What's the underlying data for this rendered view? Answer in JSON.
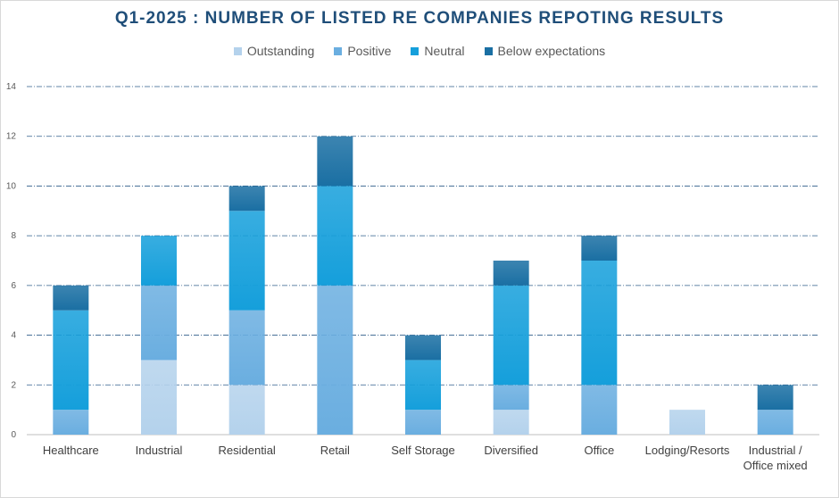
{
  "chart_data": {
    "type": "bar",
    "stacked": true,
    "title": "Q1-2025 : NUMBER OF LISTED RE COMPANIES REPOTING RESULTS",
    "categories": [
      [
        "Healthcare"
      ],
      [
        "Industrial"
      ],
      [
        "Residential"
      ],
      [
        "Retail"
      ],
      [
        "Self Storage"
      ],
      [
        "Diversified"
      ],
      [
        "Office"
      ],
      [
        "Lodging/Resorts"
      ],
      [
        "Industrial /",
        "Office mixed"
      ]
    ],
    "series": [
      {
        "name": "Outstanding",
        "color": "#b4d2ec",
        "values": [
          0,
          3,
          2,
          0,
          0,
          1,
          0,
          1,
          0
        ]
      },
      {
        "name": "Positive",
        "color": "#6aaee0",
        "values": [
          1,
          3,
          3,
          6,
          1,
          1,
          2,
          0,
          1
        ]
      },
      {
        "name": "Neutral",
        "color": "#159fdb",
        "values": [
          4,
          2,
          4,
          4,
          2,
          4,
          5,
          0,
          0
        ]
      },
      {
        "name": "Below expectations",
        "color": "#1a6fa3",
        "values": [
          1,
          0,
          1,
          2,
          1,
          1,
          1,
          0,
          1
        ]
      }
    ],
    "ylim": [
      0,
      14
    ],
    "yticks": [
      0,
      2,
      4,
      6,
      8,
      10,
      12,
      14
    ],
    "grid": true,
    "legend_position": "top"
  }
}
